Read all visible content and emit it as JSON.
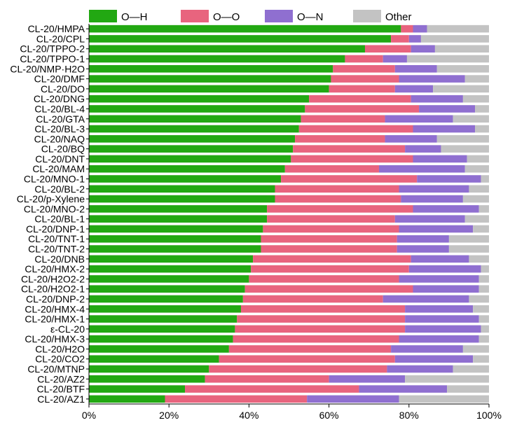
{
  "chart_data": {
    "type": "bar",
    "orientation": "horizontal",
    "stacked": true,
    "title": "",
    "xlabel": "",
    "ylabel": "",
    "xlim": [
      0,
      100
    ],
    "x_ticks": [
      "0%",
      "20%",
      "40%",
      "60%",
      "80%",
      "100%"
    ],
    "grid": false,
    "legend_position": "top",
    "categories": [
      "CL-20/HMPA",
      "CL-20/CPL",
      "CL-20/TPPO-2",
      "CL-20/TPPO-1",
      "CL-20/NMP·H2O",
      "CL-20/DMF",
      "CL-20/DO",
      "CL-20/DNG",
      "CL-20/BL-4",
      "CL-20/GTA",
      "CL-20/BL-3",
      "CL-20/NAQ",
      "CL-20/BQ",
      "CL-20/DNT",
      "CL-20/MAM",
      "CL-20/MNO-1",
      "CL-20/BL-2",
      "CL-20/p-Xylene",
      "CL-20/MNO-2",
      "CL-20/BL-1",
      "CL-20/DNP-1",
      "CL-20/TNT-1",
      "CL-20/TNT-2",
      "CL-20/DNB",
      "CL-20/HMX-2",
      "CL-20/H2O2-2",
      "CL-20/H2O2-1",
      "CL-20/DNP-2",
      "CL-20/HMX-4",
      "CL-20/HMX-1",
      "ε-CL-20",
      "CL-20/HMX-3",
      "CL-20/H2O",
      "CL-20/CO2",
      "CL-20/MTNP",
      "CL-20/AZ2",
      "CL-20/BTF",
      "CL-20/AZ1"
    ],
    "series": [
      {
        "name": "O—H",
        "color": "#22a812",
        "values": [
          78,
          75.5,
          69,
          64,
          61,
          60.5,
          60,
          55,
          54,
          53,
          52.5,
          51.5,
          51,
          50.5,
          49,
          48,
          46.5,
          46.5,
          44.5,
          44.5,
          43.5,
          43,
          43,
          41,
          40.5,
          40,
          39,
          38.5,
          38,
          37,
          36.5,
          36,
          35,
          32.5,
          30,
          29,
          24,
          19
        ]
      },
      {
        "name": "O—O",
        "color": "#e8647e",
        "values": [
          3,
          4.5,
          11.5,
          9.5,
          15.5,
          17,
          16.5,
          25.5,
          28.5,
          21,
          28.5,
          22.5,
          28,
          30.5,
          23.5,
          34,
          31,
          31.5,
          36.5,
          32,
          34,
          34,
          34,
          39.5,
          39.5,
          37.5,
          42,
          35,
          41,
          42,
          42.5,
          41.5,
          40.5,
          44,
          44.5,
          31,
          43.5,
          35.5
        ]
      },
      {
        "name": "O—N",
        "color": "#8f6fd0",
        "values": [
          3.5,
          3,
          6,
          6,
          10.5,
          16.5,
          9.5,
          13,
          14,
          17,
          15.5,
          13,
          9,
          13.5,
          21.5,
          16,
          17.5,
          15.5,
          16.5,
          17.5,
          18.5,
          13,
          13,
          14.5,
          18,
          20,
          16.5,
          21.5,
          17,
          18.5,
          19,
          20,
          18,
          19.5,
          16.5,
          19,
          22,
          23
        ]
      },
      {
        "name": "Other",
        "color": "#c3c3c3",
        "values": [
          15.5,
          17,
          13.5,
          20.5,
          13,
          6,
          14,
          6.5,
          3.5,
          9,
          3.5,
          13,
          12,
          5.5,
          6,
          2,
          5,
          6.5,
          2.5,
          6,
          4,
          10,
          10,
          5,
          2,
          2.5,
          2.5,
          5,
          4,
          2.5,
          2,
          2.5,
          6.5,
          4,
          9,
          21,
          10.5,
          22.5
        ]
      }
    ]
  }
}
